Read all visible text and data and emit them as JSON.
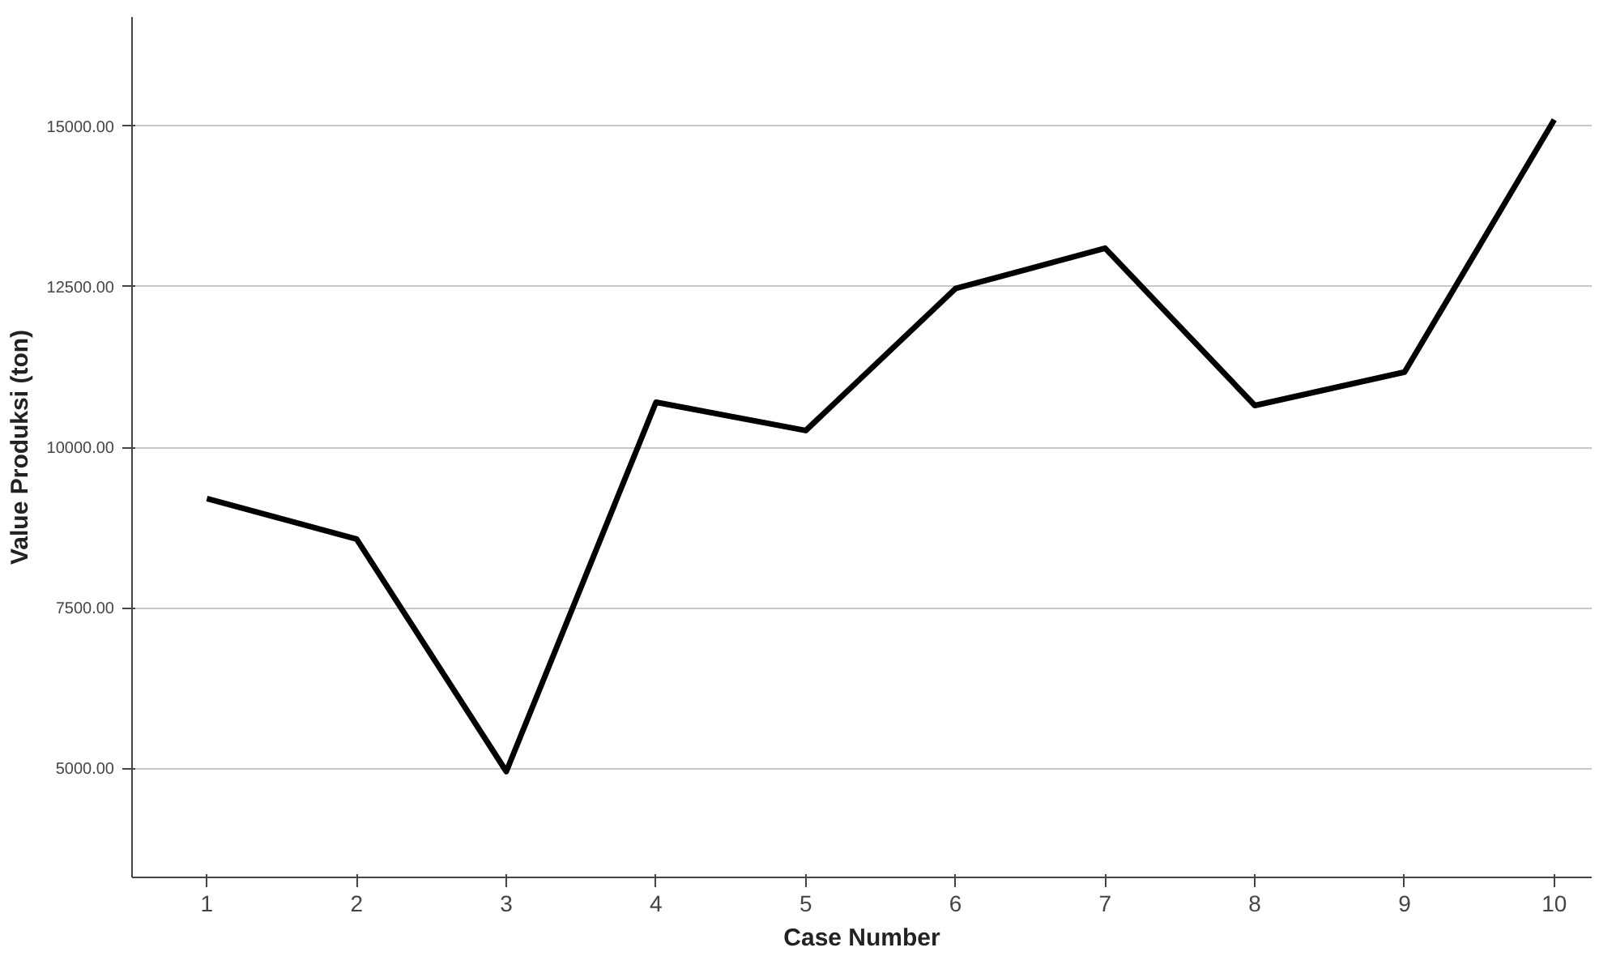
{
  "chart_data": {
    "type": "line",
    "xlabel": "Case Number",
    "ylabel": "Value Produksi (ton)",
    "x": [
      1,
      2,
      3,
      4,
      5,
      6,
      7,
      8,
      9,
      10
    ],
    "series": [
      {
        "color": "#000000",
        "values": [
          9200,
          8570,
          4950,
          10700,
          10260,
          12470,
          13100,
          10650,
          11170,
          15100
        ]
      }
    ],
    "xlim": [
      0.5,
      10.25
    ],
    "xticks": [
      1,
      2,
      3,
      4,
      5,
      6,
      7,
      8,
      9,
      10
    ],
    "ylim": [
      3300,
      16700
    ],
    "yticks": [
      {
        "value": 5000,
        "label": "5000.00"
      },
      {
        "value": 7500,
        "label": "7500.00"
      },
      {
        "value": 10000,
        "label": "10000.00"
      },
      {
        "value": 12500,
        "label": "12500.00"
      },
      {
        "value": 15000,
        "label": "15000.00"
      }
    ],
    "grid": "y",
    "marker": "none",
    "line_style": "solid"
  }
}
